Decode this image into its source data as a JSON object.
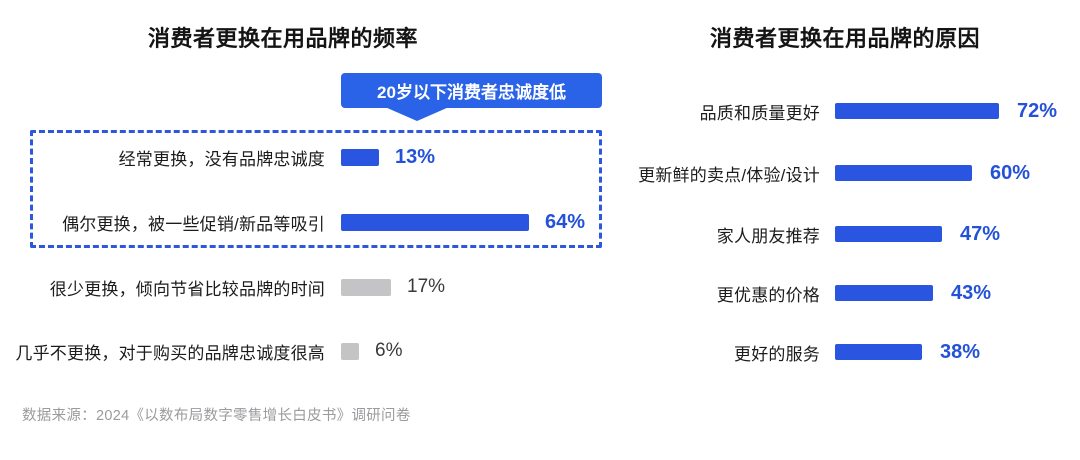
{
  "colors": {
    "bar_blue": "#2A55E0",
    "bar_gray": "#C4C4C6",
    "callout_blue": "#2A62E8",
    "dash_blue": "#2D57DC",
    "text_blue": "#2351D8"
  },
  "left_chart": {
    "title": "消费者更换在用品牌的频率",
    "callout": "20岁以下消费者忠诚度低",
    "rows": [
      {
        "label": "经常更换，没有品牌忠诚度",
        "value": 13,
        "display": "13%",
        "highlight": true
      },
      {
        "label": "偶尔更换，被一些促销/新品等吸引",
        "value": 64,
        "display": "64%",
        "highlight": true
      },
      {
        "label": "很少更换，倾向节省比较品牌的时间",
        "value": 17,
        "display": "17%",
        "highlight": false
      },
      {
        "label": "几乎不更换，对于购买的品牌忠诚度很高",
        "value": 6,
        "display": "6%",
        "highlight": false
      }
    ]
  },
  "right_chart": {
    "title": "消费者更换在用品牌的原因",
    "rows": [
      {
        "label": "品质和质量更好",
        "value": 72,
        "display": "72%"
      },
      {
        "label": "更新鲜的卖点/体验/设计",
        "value": 60,
        "display": "60%"
      },
      {
        "label": "家人朋友推荐",
        "value": 47,
        "display": "47%"
      },
      {
        "label": "更优惠的价格",
        "value": 43,
        "display": "43%"
      },
      {
        "label": "更好的服务",
        "value": 38,
        "display": "38%"
      }
    ]
  },
  "footer": {
    "source": "数据来源：2024《以数布局数字零售增长白皮书》调研问卷"
  },
  "chart_data": [
    {
      "type": "bar",
      "orientation": "horizontal",
      "title": "消费者更换在用品牌的频率",
      "categories": [
        "经常更换，没有品牌忠诚度",
        "偶尔更换，被一些促销/新品等吸引",
        "很少更换，倾向节省比较品牌的时间",
        "几乎不更换，对于购买的品牌忠诚度很高"
      ],
      "values": [
        13,
        64,
        17,
        6
      ],
      "unit": "%",
      "annotation": "20岁以下消费者忠诚度低",
      "annotation_applies_to": [
        "经常更换，没有品牌忠诚度",
        "偶尔更换，被一些促销/新品等吸引"
      ],
      "highlighted_bar_color": "#2A55E0",
      "muted_bar_color": "#C4C4C6",
      "xlim": [
        0,
        100
      ],
      "grid": false,
      "legend": false
    },
    {
      "type": "bar",
      "orientation": "horizontal",
      "title": "消费者更换在用品牌的原因",
      "categories": [
        "品质和质量更好",
        "更新鲜的卖点/体验/设计",
        "家人朋友推荐",
        "更优惠的价格",
        "更好的服务"
      ],
      "values": [
        72,
        60,
        47,
        43,
        38
      ],
      "unit": "%",
      "bar_color": "#2A55E0",
      "xlim": [
        0,
        100
      ],
      "grid": false,
      "legend": false
    }
  ]
}
